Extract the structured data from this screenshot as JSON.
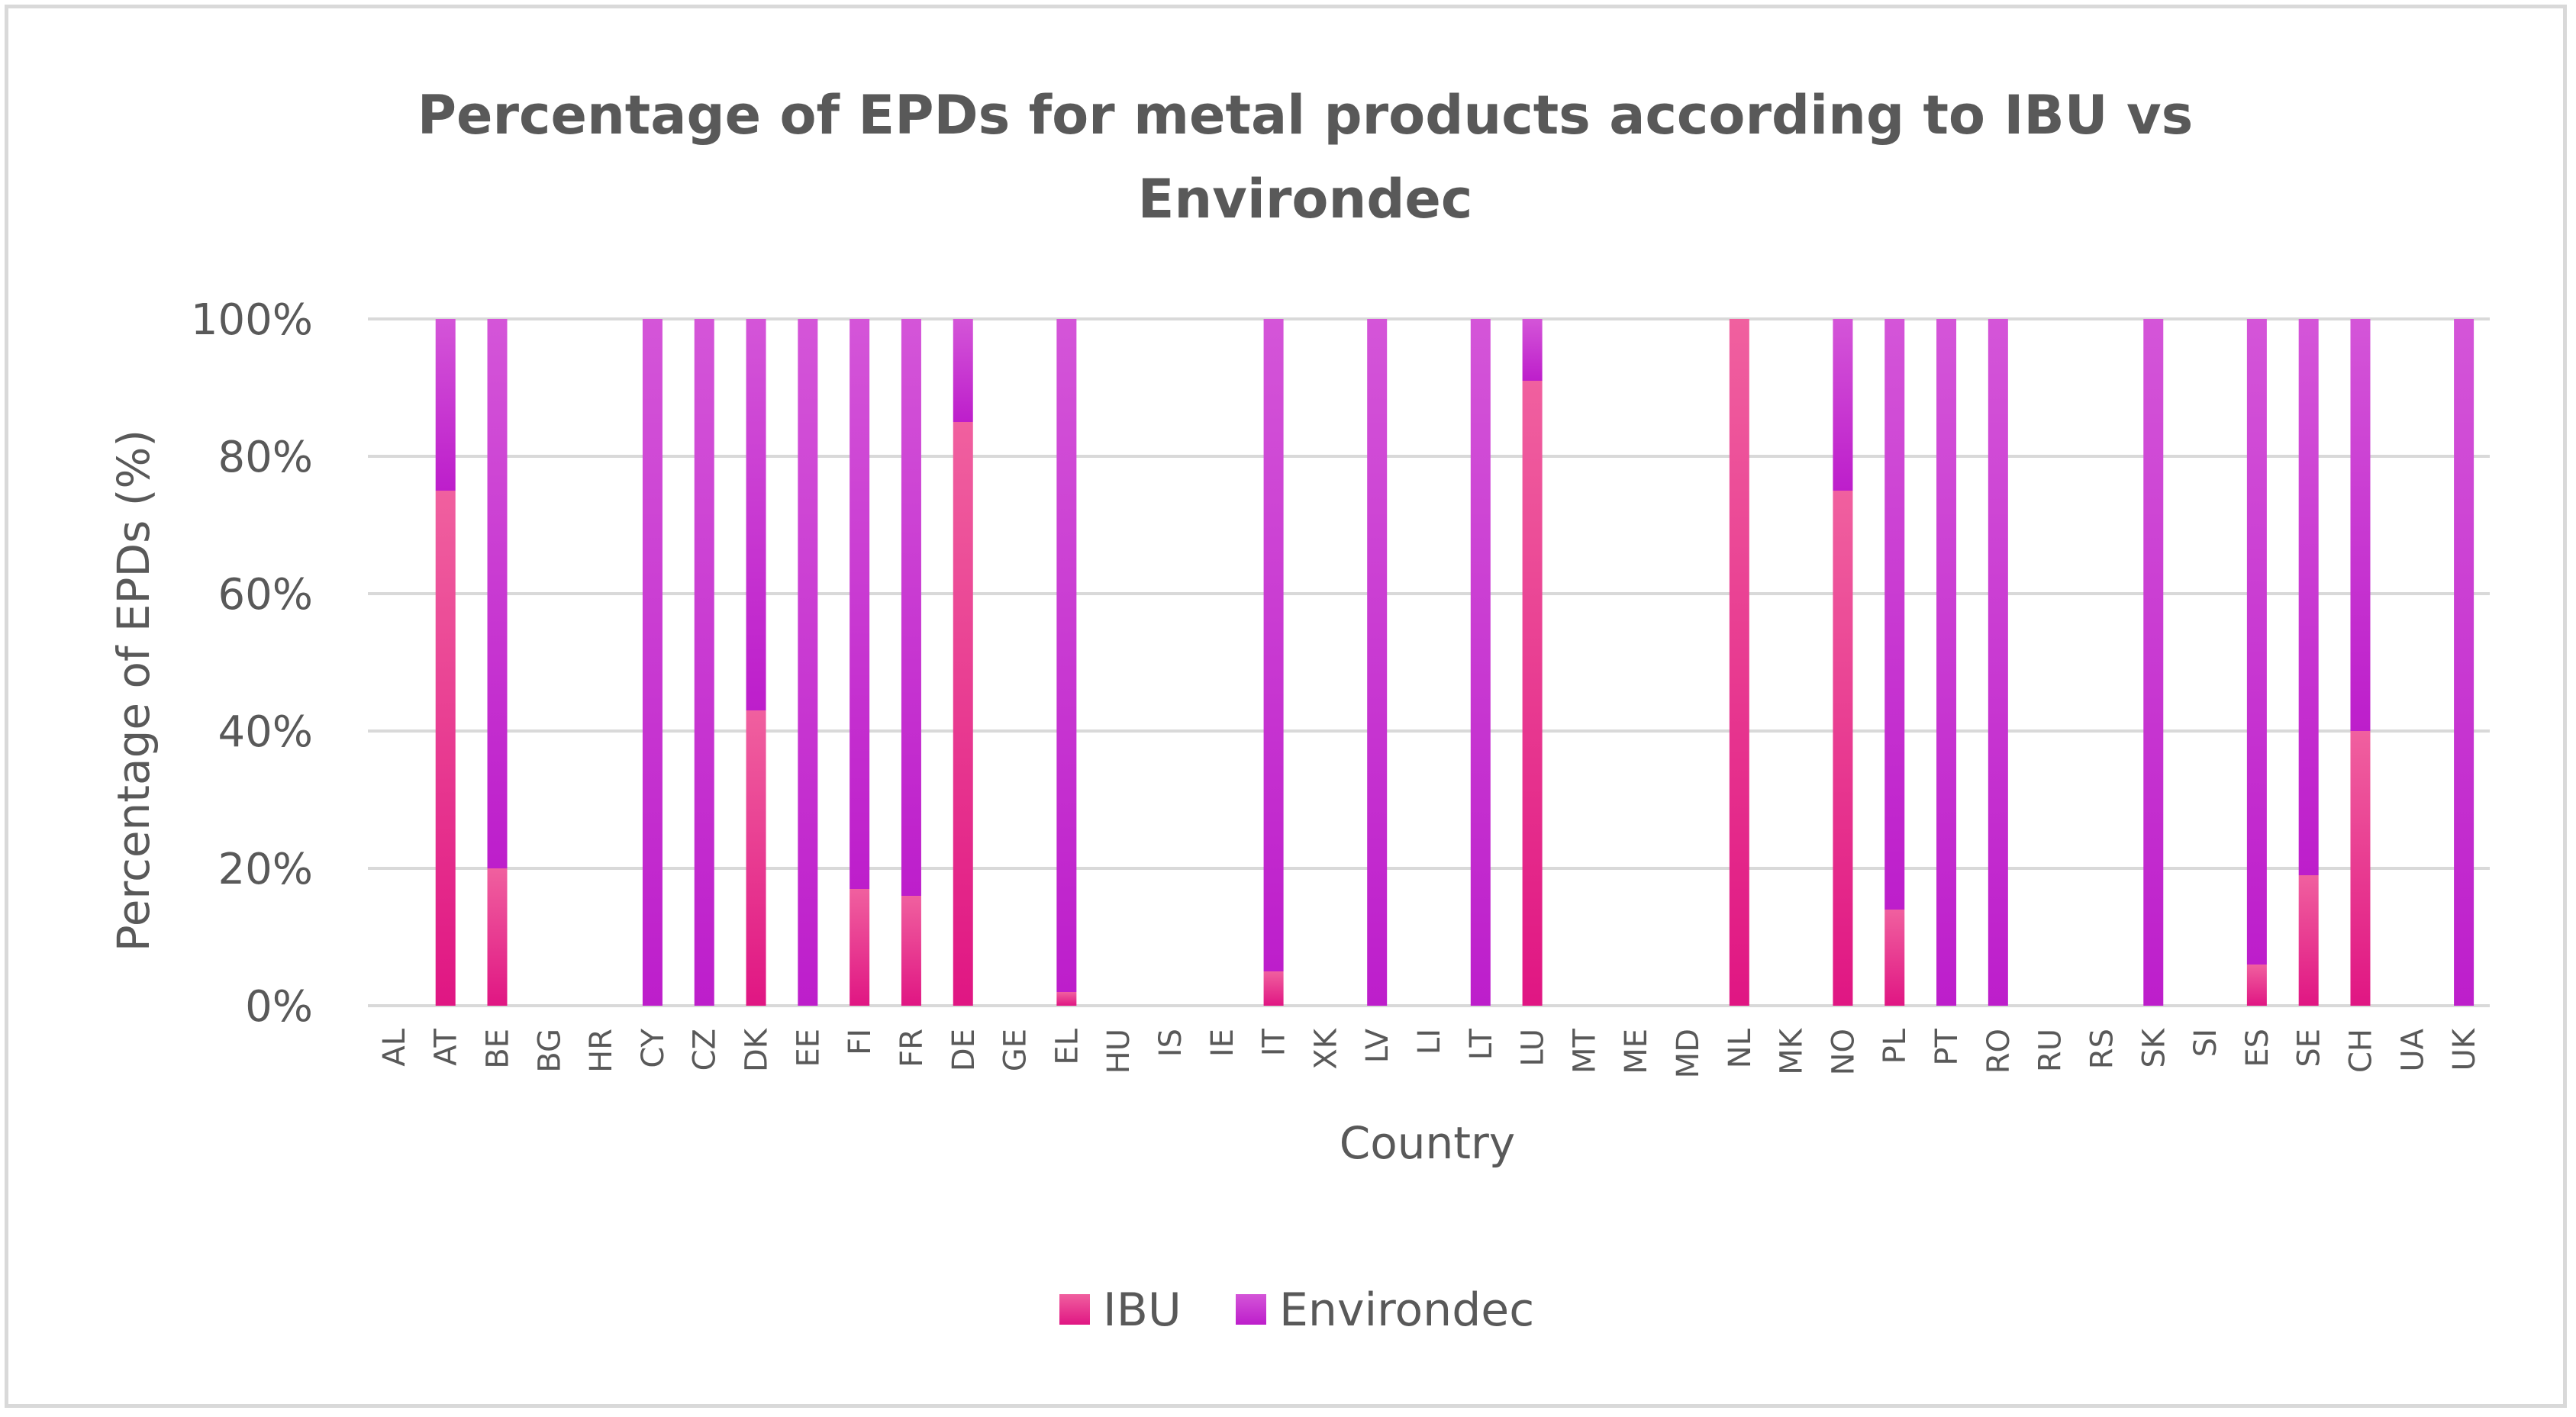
{
  "chart_data": {
    "type": "bar",
    "stacked": true,
    "title_lines": [
      "Percentage of EPDs for metal products according to IBU vs",
      "Environdec"
    ],
    "xlabel": "Country",
    "ylabel": "Percentage of EPDs (%)",
    "ylim": [
      0,
      100
    ],
    "y_ticks": [
      "0%",
      "20%",
      "40%",
      "60%",
      "80%",
      "100%"
    ],
    "categories": [
      "AL",
      "AT",
      "BE",
      "BG",
      "HR",
      "CY",
      "CZ",
      "DK",
      "EE",
      "FI",
      "FR",
      "DE",
      "GE",
      "EL",
      "HU",
      "IS",
      "IE",
      "IT",
      "XK",
      "LV",
      "LI",
      "LT",
      "LU",
      "MT",
      "ME",
      "MD",
      "NL",
      "MK",
      "NO",
      "PL",
      "PT",
      "RO",
      "RU",
      "RS",
      "SK",
      "SI",
      "ES",
      "SE",
      "CH",
      "UA",
      "UK"
    ],
    "series": [
      {
        "name": "IBU",
        "color": "#e8197f",
        "values": [
          0,
          75,
          20,
          0,
          0,
          0,
          0,
          43,
          0,
          17,
          16,
          85,
          0,
          2,
          0,
          0,
          0,
          5,
          0,
          0,
          0,
          0,
          91,
          0,
          0,
          0,
          100,
          0,
          75,
          14,
          0,
          0,
          0,
          0,
          0,
          0,
          6,
          19,
          40,
          0,
          0
        ]
      },
      {
        "name": "Environdec",
        "color": "#c526d4",
        "values": [
          0,
          25,
          80,
          0,
          0,
          100,
          100,
          57,
          100,
          83,
          84,
          15,
          0,
          98,
          0,
          0,
          0,
          95,
          0,
          100,
          0,
          100,
          9,
          0,
          0,
          0,
          0,
          0,
          25,
          86,
          100,
          100,
          0,
          0,
          100,
          0,
          94,
          81,
          60,
          0,
          100
        ]
      }
    ],
    "legend_position": "bottom"
  }
}
